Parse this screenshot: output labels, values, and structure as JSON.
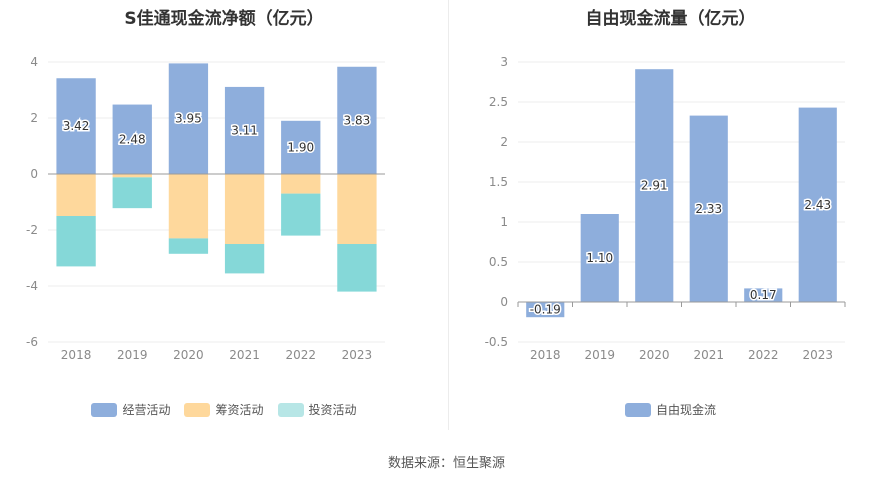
{
  "source": "数据来源：恒生聚源",
  "chart_data": [
    {
      "type": "bar",
      "stacked": true,
      "title": "S佳通现金流净额（亿元）",
      "categories": [
        "2018",
        "2019",
        "2020",
        "2021",
        "2022",
        "2023"
      ],
      "ylim": [
        -6,
        4
      ],
      "yticks": [
        "4",
        "2",
        "0",
        "-2",
        "-4",
        "-6"
      ],
      "grid": true,
      "legend_position": "bottom",
      "series": [
        {
          "name": "经营活动",
          "color": "#8eaedc",
          "values": [
            3.42,
            2.48,
            3.95,
            3.11,
            1.9,
            3.83
          ],
          "labels": [
            "3.42",
            "2.48",
            "3.95",
            "3.11",
            "1.90",
            "3.83"
          ]
        },
        {
          "name": "筹资活动",
          "color": "#fed89c",
          "values": [
            -1.5,
            -0.12,
            -2.3,
            -2.5,
            -0.7,
            -2.5
          ]
        },
        {
          "name": "投资活动",
          "color": "#85d8d8",
          "values": [
            -1.8,
            -1.1,
            -0.55,
            -1.05,
            -1.5,
            -1.7
          ]
        }
      ]
    },
    {
      "type": "bar",
      "title": "自由现金流量（亿元）",
      "categories": [
        "2018",
        "2019",
        "2020",
        "2021",
        "2022",
        "2023"
      ],
      "ylim": [
        -0.5,
        3
      ],
      "yticks": [
        "3",
        "2.5",
        "2",
        "1.5",
        "1",
        "0.5",
        "0",
        "-0.5"
      ],
      "grid": true,
      "legend_position": "bottom",
      "series": [
        {
          "name": "自由现金流",
          "color": "#8eaedc",
          "values": [
            -0.19,
            1.1,
            2.91,
            2.33,
            0.17,
            2.43
          ],
          "labels": [
            "-0.19",
            "1.10",
            "2.91",
            "2.33",
            "0.17",
            "2.43"
          ]
        }
      ]
    }
  ]
}
